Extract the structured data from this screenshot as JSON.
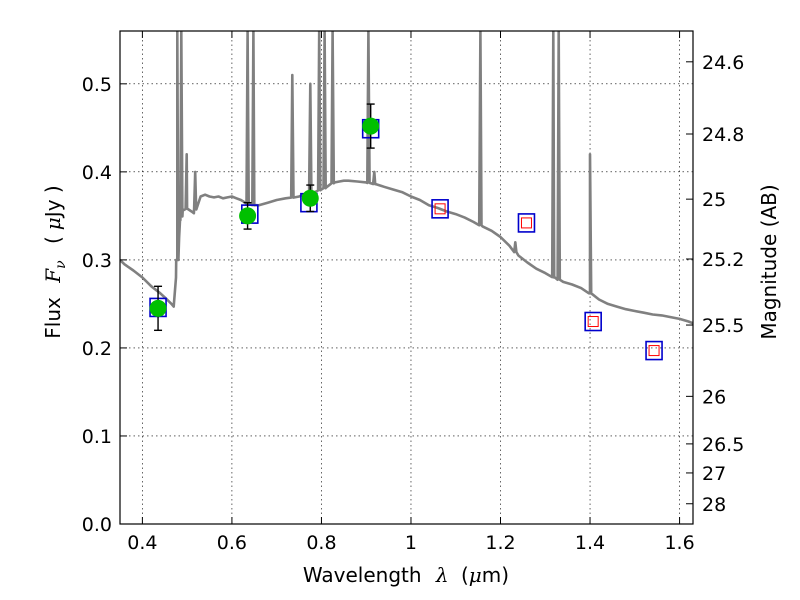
{
  "chart_data": {
    "type": "scatter",
    "xlabel": {
      "text": "Wavelength",
      "symbol": "λ",
      "unit_open": "(",
      "unit_mu": "μ",
      "unit_rest": "m)"
    },
    "ylabel": {
      "text": "Flux",
      "symbol": "F",
      "subscript": "ν",
      "unit_open": "(",
      "unit_mu": "μ",
      "unit_rest": "Jy )"
    },
    "y2label": "Magnitude (AB)",
    "xlim": [
      0.35,
      1.63
    ],
    "ylim": [
      0.0,
      0.56
    ],
    "grid": true,
    "x_ticks": [
      0.4,
      0.6,
      0.8,
      1.0,
      1.2,
      1.4,
      1.6
    ],
    "x_tick_labels": [
      "0.4",
      "0.6",
      "0.8",
      "1",
      "1.2",
      "1.4",
      "1.6"
    ],
    "y_ticks": [
      0.0,
      0.1,
      0.2,
      0.3,
      0.4,
      0.5
    ],
    "y_tick_labels": [
      "0.0",
      "0.1",
      "0.2",
      "0.3",
      "0.4",
      "0.5"
    ],
    "y2_ticks": [
      {
        "flux": 0.525,
        "label": "24.6"
      },
      {
        "flux": 0.443,
        "label": "24.8"
      },
      {
        "flux": 0.369,
        "label": "25"
      },
      {
        "flux": 0.301,
        "label": "25.2"
      },
      {
        "flux": 0.226,
        "label": "25.5"
      },
      {
        "flux": 0.145,
        "label": "26"
      },
      {
        "flux": 0.091,
        "label": "26.5"
      },
      {
        "flux": 0.058,
        "label": "27"
      },
      {
        "flux": 0.023,
        "label": "28"
      }
    ],
    "series": [
      {
        "kind": "model_spectrum",
        "color": "#808080",
        "x": [
          0.35,
          0.36,
          0.38,
          0.4,
          0.42,
          0.44,
          0.455,
          0.465,
          0.47,
          0.475,
          0.478,
          0.48,
          0.482,
          0.485,
          0.49,
          0.5,
          0.51,
          0.515,
          0.52,
          0.53,
          0.54,
          0.55,
          0.56,
          0.57,
          0.58,
          0.59,
          0.6,
          0.61,
          0.62,
          0.63,
          0.64,
          0.65,
          0.66,
          0.68,
          0.7,
          0.72,
          0.74,
          0.75,
          0.76,
          0.77,
          0.78,
          0.79,
          0.8,
          0.81,
          0.82,
          0.83,
          0.84,
          0.85,
          0.86,
          0.88,
          0.9,
          0.92,
          0.94,
          0.96,
          0.98,
          1.0,
          1.02,
          1.04,
          1.06,
          1.08,
          1.1,
          1.12,
          1.14,
          1.16,
          1.18,
          1.2,
          1.22,
          1.24,
          1.26,
          1.28,
          1.3,
          1.32,
          1.34,
          1.36,
          1.38,
          1.4,
          1.42,
          1.44,
          1.46,
          1.48,
          1.5,
          1.52,
          1.54,
          1.56,
          1.58,
          1.6,
          1.62,
          1.63
        ],
        "y": [
          0.3,
          0.295,
          0.288,
          0.28,
          0.27,
          0.262,
          0.255,
          0.25,
          0.247,
          0.28,
          0.3,
          0.32,
          0.325,
          0.345,
          0.356,
          0.358,
          0.355,
          0.353,
          0.36,
          0.372,
          0.374,
          0.372,
          0.371,
          0.372,
          0.37,
          0.371,
          0.372,
          0.37,
          0.368,
          0.365,
          0.363,
          0.362,
          0.362,
          0.365,
          0.368,
          0.37,
          0.371,
          0.372,
          0.374,
          0.376,
          0.376,
          0.378,
          0.38,
          0.382,
          0.386,
          0.388,
          0.389,
          0.39,
          0.39,
          0.389,
          0.388,
          0.386,
          0.383,
          0.38,
          0.377,
          0.372,
          0.368,
          0.362,
          0.359,
          0.355,
          0.352,
          0.348,
          0.343,
          0.338,
          0.333,
          0.326,
          0.316,
          0.305,
          0.297,
          0.29,
          0.285,
          0.28,
          0.275,
          0.272,
          0.268,
          0.262,
          0.255,
          0.25,
          0.247,
          0.244,
          0.242,
          0.24,
          0.238,
          0.237,
          0.235,
          0.233,
          0.23,
          0.228
        ],
        "emission_lines": [
          {
            "x": 0.478,
            "peak": 0.56
          },
          {
            "x": 0.487,
            "peak": 0.56
          },
          {
            "x": 0.499,
            "peak": 0.42
          },
          {
            "x": 0.518,
            "peak": 0.4
          },
          {
            "x": 0.635,
            "peak": 0.56
          },
          {
            "x": 0.648,
            "peak": 0.56
          },
          {
            "x": 0.735,
            "peak": 0.51
          },
          {
            "x": 0.775,
            "peak": 0.5
          },
          {
            "x": 0.795,
            "peak": 0.56
          },
          {
            "x": 0.807,
            "peak": 0.56
          },
          {
            "x": 0.825,
            "peak": 0.56
          },
          {
            "x": 0.905,
            "peak": 0.56
          },
          {
            "x": 0.918,
            "peak": 0.4
          },
          {
            "x": 1.155,
            "peak": 0.56
          },
          {
            "x": 1.233,
            "peak": 0.32
          },
          {
            "x": 1.318,
            "peak": 0.56
          },
          {
            "x": 1.33,
            "peak": 0.56
          },
          {
            "x": 1.4,
            "peak": 0.42
          }
        ]
      },
      {
        "kind": "observed_photometry",
        "marker": "circle",
        "color": "#00c000",
        "points": [
          {
            "x": 0.435,
            "y": 0.245,
            "err": 0.025
          },
          {
            "x": 0.635,
            "y": 0.35,
            "err": 0.015
          },
          {
            "x": 0.775,
            "y": 0.37,
            "err": 0.015
          },
          {
            "x": 0.91,
            "y": 0.452,
            "err": 0.025
          }
        ]
      },
      {
        "kind": "model_photometry",
        "marker": "square",
        "color": "#0000cc",
        "points": [
          {
            "x": 0.435,
            "y": 0.246
          },
          {
            "x": 0.64,
            "y": 0.352
          },
          {
            "x": 0.772,
            "y": 0.365
          },
          {
            "x": 0.91,
            "y": 0.449
          },
          {
            "x": 1.065,
            "y": 0.358
          },
          {
            "x": 1.258,
            "y": 0.342
          },
          {
            "x": 1.407,
            "y": 0.23
          },
          {
            "x": 1.543,
            "y": 0.197
          }
        ]
      },
      {
        "kind": "predicted_photometry",
        "marker": "open-square",
        "color": "#ff0000",
        "points": [
          {
            "x": 1.065,
            "y": 0.358
          },
          {
            "x": 1.258,
            "y": 0.342
          },
          {
            "x": 1.407,
            "y": 0.23
          },
          {
            "x": 1.543,
            "y": 0.197
          }
        ]
      }
    ]
  }
}
